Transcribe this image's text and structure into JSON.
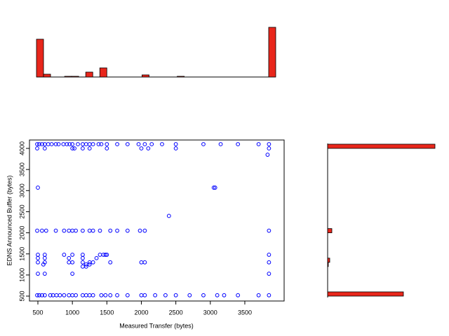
{
  "chart_data": [
    {
      "type": "histogram",
      "orientation": "vertical",
      "color": "#e8261b",
      "bins": [
        500,
        600,
        700,
        800,
        900,
        1000,
        1100,
        1200,
        1300,
        1400,
        1500,
        1600,
        1700,
        1800,
        1900,
        2000,
        2100,
        2200,
        2300,
        2400,
        2500,
        2600,
        2700,
        2800,
        2900,
        3000,
        3100,
        3200,
        3300,
        3400,
        3500,
        3600,
        3700,
        3800,
        3900
      ],
      "values": [
        54,
        4,
        0,
        0,
        1,
        1,
        0,
        7,
        0,
        13,
        0,
        0,
        0,
        0,
        0,
        3,
        0,
        0,
        0,
        0,
        1,
        0,
        0,
        0,
        0,
        0,
        0,
        0,
        0,
        0,
        0,
        0,
        0,
        71
      ]
    },
    {
      "type": "scatter",
      "color": "#0000ff",
      "xlabel": "Measured Transfer (bytes)",
      "ylabel": "EDNS Announced Buffer (bytes)",
      "xlim": [
        378,
        4070
      ],
      "ylim": [
        384,
        4199
      ],
      "xticks": [
        500,
        1000,
        1500,
        2000,
        2500,
        3000,
        3500
      ],
      "yticks": [
        500,
        1000,
        1500,
        2000,
        2500,
        3000,
        3500,
        4000
      ],
      "x": [
        490,
        520,
        560,
        600,
        650,
        700,
        760,
        800,
        870,
        920,
        960,
        1000,
        1080,
        1150,
        1200,
        1250,
        1300,
        1380,
        1420,
        1500,
        1650,
        1800,
        1960,
        2050,
        2150,
        2300,
        2500,
        2900,
        3150,
        3400,
        3700,
        3850,
        490,
        600,
        1000,
        1030,
        1150,
        1250,
        1500,
        2000,
        2100,
        2500,
        3850,
        3830,
        500,
        3050,
        3070,
        2400,
        490,
        560,
        620,
        760,
        880,
        950,
        1000,
        1050,
        1150,
        1250,
        1300,
        1400,
        1550,
        1650,
        1800,
        1980,
        2050,
        3850,
        500,
        600,
        880,
        1000,
        1150,
        1400,
        1450,
        1480,
        1500,
        3850,
        500,
        600,
        950,
        1150,
        1350,
        500,
        600,
        950,
        1000,
        1150,
        1250,
        1300,
        1550,
        2000,
        2050,
        3850,
        580,
        1200,
        1250,
        1150,
        1200,
        500,
        600,
        1000,
        3850,
        490,
        520,
        560,
        600,
        680,
        720,
        770,
        820,
        880,
        950,
        1000,
        1050,
        1150,
        1200,
        1250,
        1300,
        1420,
        1480,
        1550,
        1650,
        1800,
        2000,
        2050,
        2200,
        2350,
        2500,
        2700,
        2900,
        3100,
        3200,
        3400,
        3700,
        3850
      ],
      "values": [
        4100,
        4100,
        4100,
        4100,
        4100,
        4100,
        4100,
        4100,
        4100,
        4100,
        4100,
        4100,
        4100,
        4100,
        4100,
        4100,
        4100,
        4100,
        4100,
        4100,
        4100,
        4100,
        4100,
        4100,
        4100,
        4100,
        4100,
        4100,
        4100,
        4100,
        4100,
        4100,
        4000,
        4000,
        4000,
        4000,
        4000,
        4000,
        4000,
        4000,
        4000,
        4000,
        4000,
        3850,
        3070,
        3070,
        3070,
        2400,
        2050,
        2050,
        2050,
        2050,
        2050,
        2050,
        2050,
        2050,
        2050,
        2050,
        2050,
        2050,
        2050,
        2050,
        2050,
        2050,
        2050,
        2050,
        1480,
        1480,
        1480,
        1480,
        1480,
        1480,
        1480,
        1480,
        1480,
        1480,
        1400,
        1400,
        1400,
        1400,
        1400,
        1300,
        1300,
        1300,
        1300,
        1300,
        1300,
        1300,
        1300,
        1300,
        1300,
        1300,
        1250,
        1250,
        1250,
        1200,
        1200,
        1030,
        1030,
        1030,
        1030,
        520,
        520,
        520,
        520,
        520,
        520,
        520,
        520,
        520,
        520,
        520,
        520,
        520,
        520,
        520,
        520,
        520,
        520,
        520,
        520,
        520,
        520,
        520,
        520,
        520,
        520,
        520,
        520,
        520,
        520,
        520,
        520,
        520
      ]
    },
    {
      "type": "histogram",
      "orientation": "horizontal",
      "color": "#e8261b",
      "bins": [
        500,
        600,
        700,
        800,
        900,
        1000,
        1100,
        1200,
        1300,
        1400,
        1500,
        1600,
        1700,
        1800,
        1900,
        2000,
        2100,
        2200,
        2300,
        2400,
        2500,
        2600,
        2700,
        2800,
        2900,
        3000,
        3100,
        3200,
        3300,
        3400,
        3500,
        3600,
        3700,
        3800,
        3900,
        4000,
        4100
      ],
      "values": [
        108,
        0,
        0,
        0,
        0,
        0,
        0,
        1,
        3,
        0,
        0,
        0,
        0,
        0,
        0,
        6,
        0,
        0,
        0,
        0,
        0,
        0,
        0,
        0,
        0,
        0,
        0,
        0,
        0,
        0,
        0,
        0,
        0,
        0,
        0,
        153
      ]
    }
  ]
}
